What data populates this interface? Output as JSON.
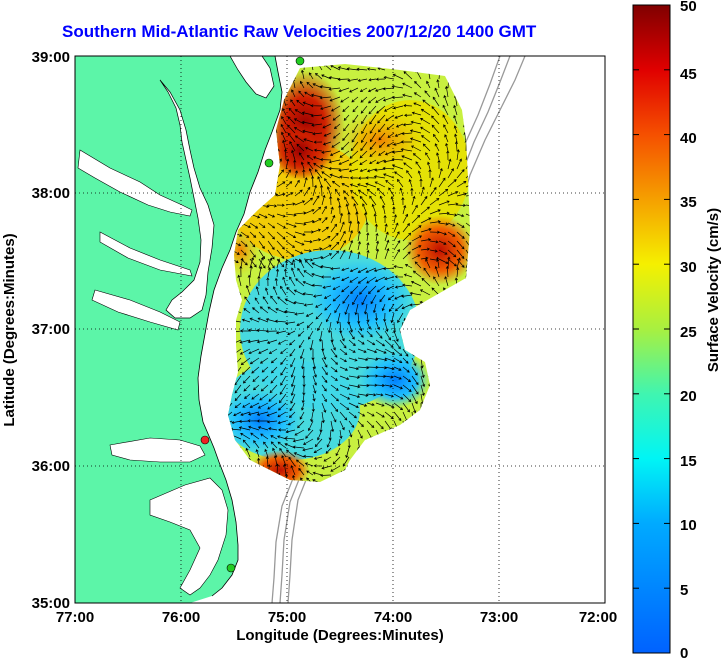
{
  "title": "Southern Mid-Atlantic Raw Velocities 2007/12/20 1400 GMT",
  "xaxis": {
    "label": "Longitude (Degrees:Minutes)",
    "ticks": [
      "77:00",
      "76:00",
      "75:00",
      "74:00",
      "73:00",
      "72:00"
    ]
  },
  "yaxis": {
    "label": "Latitude (Degrees:Minutes)",
    "ticks": [
      "39:00",
      "38:00",
      "37:00",
      "36:00",
      "35:00"
    ]
  },
  "colorbar": {
    "label": "Surface Velocity (cm/s)",
    "ticks": [
      "50",
      "45",
      "40",
      "35",
      "30",
      "25",
      "20",
      "15",
      "10",
      "5",
      "0"
    ],
    "range": [
      0,
      50
    ]
  },
  "colors": {
    "land": "#5cf5a8",
    "ocean": "#ffffff",
    "title": "#0000ff",
    "station_green": "#22cc22",
    "station_red": "#ee2222"
  },
  "chart_data": {
    "type": "heatmap",
    "title": "Southern Mid-Atlantic Raw Velocities 2007/12/20 1400 GMT",
    "xlabel": "Longitude (Degrees:Minutes)",
    "ylabel": "Latitude (Degrees:Minutes)",
    "xlim": [
      -77,
      -72
    ],
    "ylim": [
      35,
      39
    ],
    "colorbar_label": "Surface Velocity (cm/s)",
    "colorbar_range": [
      0,
      50
    ],
    "stations": [
      {
        "lon": -74.92,
        "lat": 39.0,
        "status": "green"
      },
      {
        "lon": -75.15,
        "lat": 38.23,
        "status": "green"
      },
      {
        "lon": -75.62,
        "lat": 36.2,
        "status": "red"
      },
      {
        "lon": -75.42,
        "lat": 35.25,
        "status": "green"
      }
    ]
  }
}
